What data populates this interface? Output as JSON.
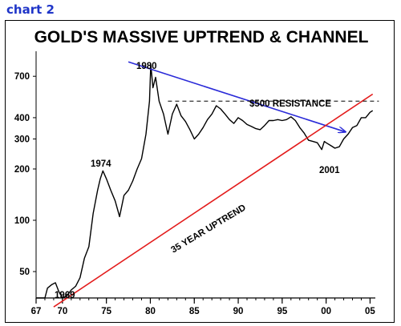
{
  "header": {
    "label": "chart 2"
  },
  "chart_data": {
    "type": "line",
    "title": "GOLD'S MASSIVE UPTREND & CHANNEL",
    "y_scale": "log",
    "ylim": [
      35,
      900
    ],
    "xlim": [
      1967,
      2005.6
    ],
    "y_ticks": [
      50,
      100,
      200,
      300,
      400,
      700
    ],
    "x_ticks": [
      {
        "label": "67",
        "year": 1967
      },
      {
        "label": "70",
        "year": 1970
      },
      {
        "label": "75",
        "year": 1975
      },
      {
        "label": "80",
        "year": 1980
      },
      {
        "label": "85",
        "year": 1985
      },
      {
        "label": "90",
        "year": 1990
      },
      {
        "label": "95",
        "year": 1995
      },
      {
        "label": "00",
        "year": 2000
      },
      {
        "label": "05",
        "year": 2005
      }
    ],
    "series": [
      {
        "color": "#000000",
        "points": [
          [
            1967.0,
            35
          ],
          [
            1968.0,
            35
          ],
          [
            1968.3,
            40
          ],
          [
            1968.8,
            42
          ],
          [
            1969.2,
            43
          ],
          [
            1969.6,
            38
          ],
          [
            1970.0,
            35
          ],
          [
            1970.5,
            36
          ],
          [
            1971.0,
            39
          ],
          [
            1971.5,
            41
          ],
          [
            1972.0,
            46
          ],
          [
            1972.5,
            60
          ],
          [
            1973.0,
            70
          ],
          [
            1973.5,
            110
          ],
          [
            1974.0,
            150
          ],
          [
            1974.3,
            175
          ],
          [
            1974.6,
            195
          ],
          [
            1975.0,
            175
          ],
          [
            1975.5,
            150
          ],
          [
            1976.0,
            130
          ],
          [
            1976.5,
            105
          ],
          [
            1977.0,
            140
          ],
          [
            1977.5,
            150
          ],
          [
            1978.0,
            170
          ],
          [
            1978.5,
            200
          ],
          [
            1979.0,
            230
          ],
          [
            1979.5,
            320
          ],
          [
            1979.9,
            500
          ],
          [
            1980.05,
            820
          ],
          [
            1980.3,
            600
          ],
          [
            1980.6,
            690
          ],
          [
            1981.0,
            500
          ],
          [
            1981.5,
            420
          ],
          [
            1982.0,
            320
          ],
          [
            1982.5,
            420
          ],
          [
            1983.0,
            480
          ],
          [
            1983.5,
            410
          ],
          [
            1984.0,
            380
          ],
          [
            1984.5,
            340
          ],
          [
            1985.0,
            300
          ],
          [
            1985.5,
            320
          ],
          [
            1986.0,
            350
          ],
          [
            1986.5,
            390
          ],
          [
            1987.0,
            420
          ],
          [
            1987.5,
            470
          ],
          [
            1988.0,
            450
          ],
          [
            1988.5,
            420
          ],
          [
            1989.0,
            390
          ],
          [
            1989.5,
            370
          ],
          [
            1990.0,
            400
          ],
          [
            1990.5,
            385
          ],
          [
            1991.0,
            365
          ],
          [
            1991.5,
            355
          ],
          [
            1992.0,
            345
          ],
          [
            1992.5,
            340
          ],
          [
            1993.0,
            360
          ],
          [
            1993.5,
            385
          ],
          [
            1994.0,
            385
          ],
          [
            1994.5,
            390
          ],
          [
            1995.0,
            385
          ],
          [
            1995.5,
            390
          ],
          [
            1996.0,
            405
          ],
          [
            1996.5,
            385
          ],
          [
            1997.0,
            350
          ],
          [
            1997.5,
            325
          ],
          [
            1998.0,
            295
          ],
          [
            1998.5,
            290
          ],
          [
            1999.0,
            285
          ],
          [
            1999.5,
            260
          ],
          [
            1999.8,
            290
          ],
          [
            2000.0,
            285
          ],
          [
            2000.5,
            275
          ],
          [
            2001.0,
            265
          ],
          [
            2001.5,
            270
          ],
          [
            2002.0,
            300
          ],
          [
            2002.5,
            320
          ],
          [
            2003.0,
            350
          ],
          [
            2003.5,
            360
          ],
          [
            2004.0,
            400
          ],
          [
            2004.5,
            400
          ],
          [
            2005.0,
            430
          ],
          [
            2005.3,
            440
          ]
        ]
      }
    ],
    "lines": [
      {
        "name": "downtrend",
        "color": "#2a2ad8",
        "arrow": true,
        "from": [
          1977.5,
          850
        ],
        "to": [
          2002.2,
          330
        ]
      },
      {
        "name": "uptrend",
        "color": "#e31b1b",
        "from": [
          1969.0,
          31
        ],
        "to": [
          2005.3,
          550
        ]
      },
      {
        "name": "resistance",
        "color": "#000000",
        "dashed": true,
        "from": [
          1982.0,
          500
        ],
        "to": [
          2006.0,
          500
        ]
      }
    ],
    "annotations": [
      {
        "text": "1980"
      },
      {
        "text": "1974"
      },
      {
        "text": "1969"
      },
      {
        "text": "2001"
      },
      {
        "text": "$500 RESISTANCE"
      },
      {
        "text": "35 YEAR UPTREND"
      }
    ]
  }
}
